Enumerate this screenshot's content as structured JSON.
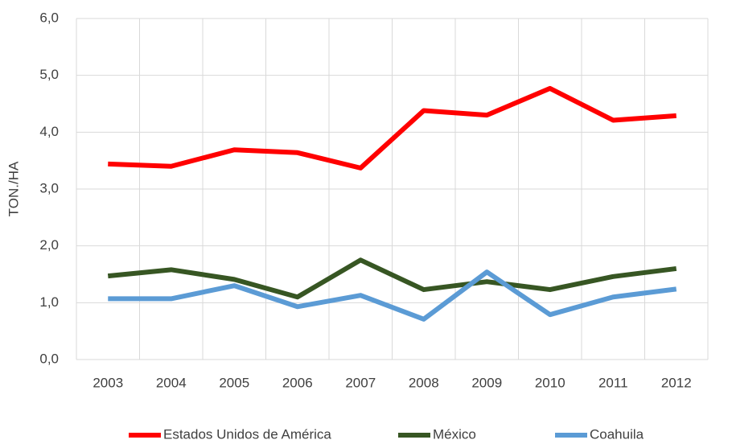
{
  "chart_data": {
    "type": "line",
    "y_label": "TON./HA",
    "categories": [
      "2003",
      "2004",
      "2005",
      "2006",
      "2007",
      "2008",
      "2009",
      "2010",
      "2011",
      "2012"
    ],
    "series": [
      {
        "name": "Estados Unidos de América",
        "color": "#ff0000",
        "values": [
          3.44,
          3.4,
          3.69,
          3.64,
          3.37,
          4.38,
          4.3,
          4.77,
          4.21,
          4.29
        ]
      },
      {
        "name": "México",
        "color": "#375623",
        "values": [
          1.47,
          1.58,
          1.41,
          1.1,
          1.75,
          1.23,
          1.37,
          1.23,
          1.46,
          1.6
        ]
      },
      {
        "name": "Coahuila",
        "color": "#5b9bd5",
        "values": [
          1.07,
          1.07,
          1.3,
          0.93,
          1.13,
          0.71,
          1.54,
          0.79,
          1.1,
          1.24
        ]
      }
    ],
    "ylim": [
      0,
      6
    ],
    "yticks": [
      {
        "value": 0,
        "label": "0,0"
      },
      {
        "value": 1,
        "label": "1,0"
      },
      {
        "value": 2,
        "label": "2,0"
      },
      {
        "value": 3,
        "label": "3,0"
      },
      {
        "value": 4,
        "label": "4,0"
      },
      {
        "value": 5,
        "label": "5,0"
      },
      {
        "value": 6,
        "label": "6,0"
      }
    ],
    "grid": true,
    "legend": "bottom"
  }
}
